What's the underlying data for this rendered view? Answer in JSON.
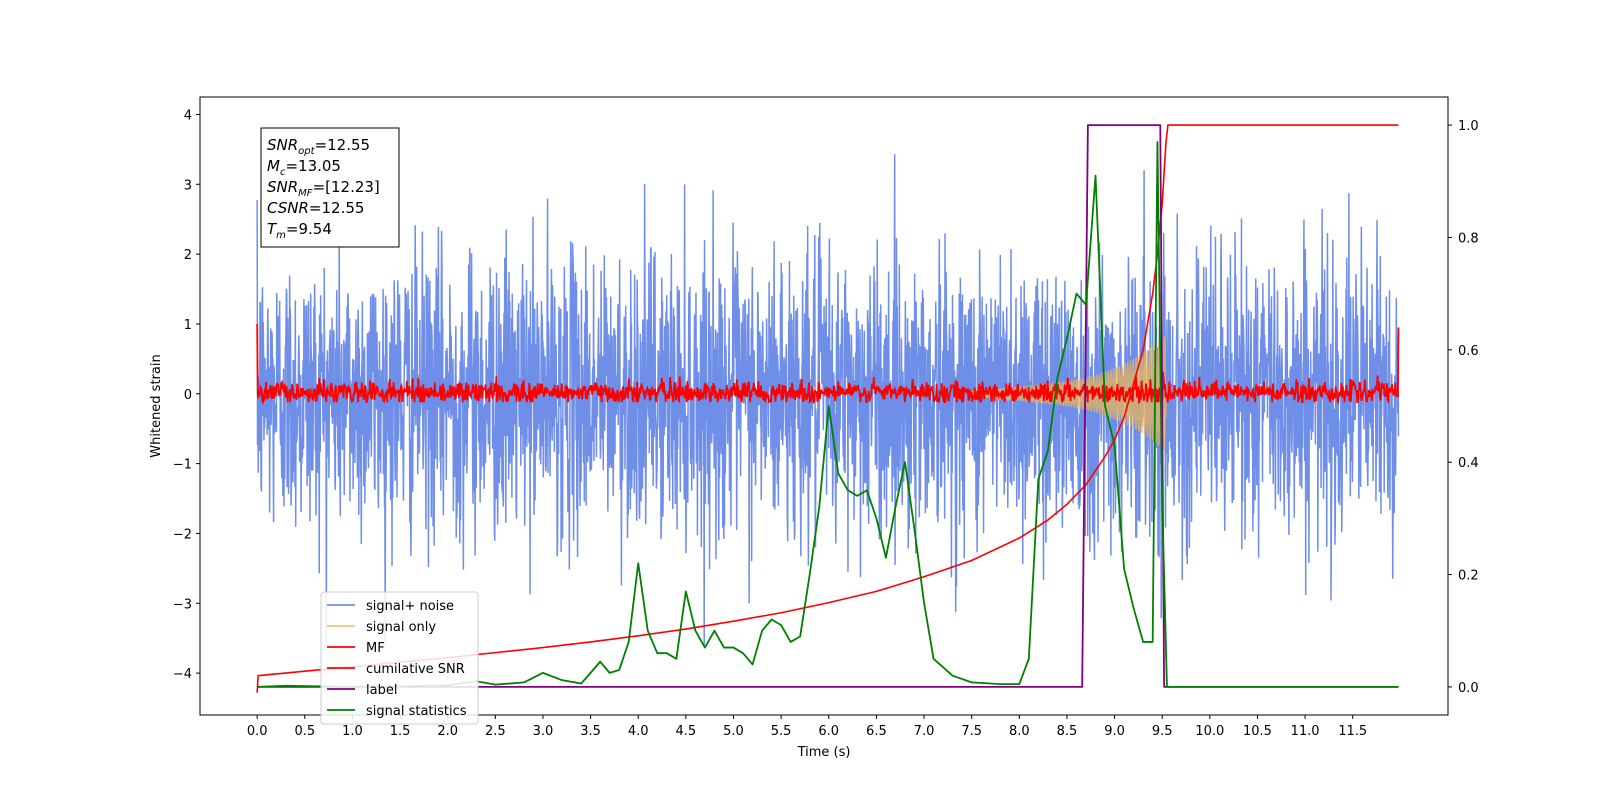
{
  "chart_data": {
    "type": "line",
    "xlabel": "Time (s)",
    "ylabel": "Whitened strain",
    "xlim": [
      -0.6,
      12.5
    ],
    "ylim": [
      -4.6,
      4.25
    ],
    "y2lim": [
      -0.05,
      1.05
    ],
    "x_ticks": [
      0.0,
      0.5,
      1.0,
      1.5,
      2.0,
      2.5,
      3.0,
      3.5,
      4.0,
      4.5,
      5.0,
      5.5,
      6.0,
      6.5,
      7.0,
      7.5,
      8.0,
      8.5,
      9.0,
      9.5,
      10.0,
      10.5,
      11.0,
      11.5
    ],
    "x_tick_labels": [
      "0.0",
      "0.5",
      "1.0",
      "1.5",
      "2.0",
      "2.5",
      "3.0",
      "3.5",
      "4.0",
      "4.5",
      "5.0",
      "5.5",
      "6.0",
      "6.5",
      "7.0",
      "7.5",
      "8.0",
      "8.5",
      "9.0",
      "9.5",
      "10.0",
      "10.5",
      "11.0",
      "11.5"
    ],
    "y_ticks": [
      4,
      3,
      2,
      1,
      0,
      -1,
      -2,
      -3,
      -4
    ],
    "y_tick_labels": [
      "4",
      "3",
      "2",
      "1",
      "0",
      "−1",
      "−2",
      "−3",
      "−4"
    ],
    "y2_ticks": [
      1.0,
      0.8,
      0.6,
      0.4,
      0.2,
      0.0
    ],
    "y2_tick_labels": [
      "1.0",
      "0.8",
      "0.6",
      "0.4",
      "0.2",
      "0.0"
    ],
    "colors": {
      "signal_noise": "#6f8ee8",
      "signal_only": "#e8b45a",
      "mf": "#ff0000",
      "csnr": "#ff0000",
      "label": "#800080",
      "stats": "#008000"
    },
    "legend_position": "lower-left",
    "annotation_lines": [
      {
        "base": "SNR",
        "sub": "opt",
        "rest": "=12.55"
      },
      {
        "base": "M",
        "sub": "c",
        "rest": "=13.05"
      },
      {
        "base": "SNR",
        "sub": "MF",
        "rest": "=[12.23]"
      },
      {
        "base": "CSNR",
        "sub": "",
        "rest": "=12.55"
      },
      {
        "base": "T",
        "sub": "m",
        "rest": "=9.54"
      }
    ],
    "series": [
      {
        "name": "signal+ noise",
        "axis": "left",
        "kind": "noise-band",
        "x_range": [
          0.0,
          11.98
        ],
        "sigma": 1.0,
        "max": 3.85,
        "min": -3.6
      },
      {
        "name": "signal only",
        "axis": "left",
        "kind": "chirp-envelope",
        "x": [
          7.5,
          8.0,
          8.5,
          8.8,
          9.0,
          9.2,
          9.4,
          9.5,
          9.54
        ],
        "amplitude": [
          0.05,
          0.1,
          0.18,
          0.27,
          0.37,
          0.5,
          0.68,
          0.8,
          0.85
        ]
      },
      {
        "name": "MF",
        "axis": "left",
        "kind": "noise-band",
        "x_range": [
          0.0,
          11.98
        ],
        "sigma": 0.08,
        "max": 0.33,
        "min": -0.12
      },
      {
        "name": "cumilative SNR",
        "axis": "right",
        "x": [
          0.0,
          0.01,
          0.5,
          1.0,
          1.5,
          2.0,
          2.5,
          3.0,
          3.5,
          4.0,
          4.5,
          5.0,
          5.5,
          6.0,
          6.5,
          7.0,
          7.5,
          8.0,
          8.3,
          8.5,
          8.7,
          8.9,
          9.0,
          9.1,
          9.2,
          9.3,
          9.4,
          9.45,
          9.5,
          9.54,
          9.56,
          11.98
        ],
        "y": [
          -0.01,
          0.02,
          0.028,
          0.036,
          0.044,
          0.052,
          0.061,
          0.07,
          0.08,
          0.091,
          0.103,
          0.117,
          0.132,
          0.15,
          0.17,
          0.196,
          0.225,
          0.265,
          0.297,
          0.325,
          0.36,
          0.41,
          0.44,
          0.48,
          0.54,
          0.6,
          0.7,
          0.77,
          0.86,
          0.97,
          1.0,
          1.0
        ]
      },
      {
        "name": "label",
        "axis": "right",
        "x": [
          0.0,
          8.66,
          8.72,
          9.48,
          9.52,
          11.98
        ],
        "y": [
          0.0,
          0.0,
          1.0,
          1.0,
          0.0,
          0.0
        ]
      },
      {
        "name": "signal statistics",
        "axis": "right",
        "x": [
          0.0,
          0.3,
          1.0,
          1.5,
          2.0,
          2.3,
          2.5,
          2.8,
          3.0,
          3.2,
          3.4,
          3.5,
          3.6,
          3.7,
          3.8,
          3.9,
          4.0,
          4.1,
          4.2,
          4.3,
          4.4,
          4.5,
          4.6,
          4.7,
          4.8,
          4.9,
          5.0,
          5.1,
          5.2,
          5.3,
          5.4,
          5.5,
          5.6,
          5.7,
          5.8,
          5.9,
          6.0,
          6.1,
          6.2,
          6.3,
          6.4,
          6.5,
          6.6,
          6.7,
          6.8,
          6.9,
          7.0,
          7.1,
          7.3,
          7.5,
          7.8,
          8.0,
          8.1,
          8.2,
          8.3,
          8.4,
          8.5,
          8.6,
          8.7,
          8.8,
          8.9,
          9.0,
          9.1,
          9.2,
          9.3,
          9.4,
          9.45,
          9.5,
          9.55,
          9.6,
          11.98
        ],
        "y": [
          0.0,
          0.002,
          0.0,
          0.001,
          0.003,
          0.01,
          0.004,
          0.008,
          0.025,
          0.012,
          0.006,
          0.025,
          0.045,
          0.025,
          0.03,
          0.08,
          0.22,
          0.1,
          0.06,
          0.06,
          0.05,
          0.17,
          0.1,
          0.07,
          0.1,
          0.07,
          0.07,
          0.06,
          0.04,
          0.1,
          0.12,
          0.11,
          0.08,
          0.09,
          0.2,
          0.32,
          0.5,
          0.38,
          0.35,
          0.34,
          0.35,
          0.3,
          0.23,
          0.32,
          0.4,
          0.28,
          0.15,
          0.05,
          0.02,
          0.008,
          0.005,
          0.005,
          0.05,
          0.37,
          0.42,
          0.55,
          0.62,
          0.7,
          0.68,
          0.91,
          0.5,
          0.43,
          0.21,
          0.14,
          0.08,
          0.08,
          0.97,
          0.33,
          0.0,
          0.0,
          0.0
        ]
      }
    ]
  }
}
